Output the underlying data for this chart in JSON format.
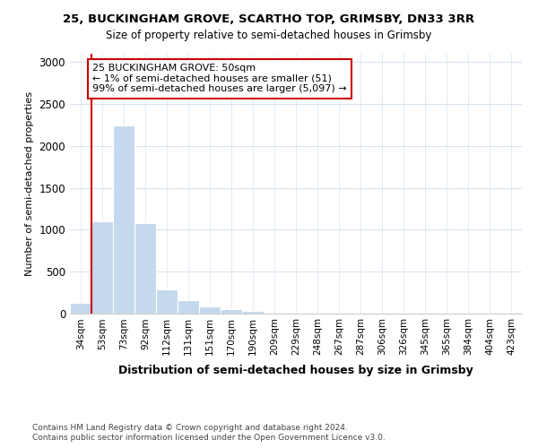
{
  "title1": "25, BUCKINGHAM GROVE, SCARTHO TOP, GRIMSBY, DN33 3RR",
  "title2": "Size of property relative to semi-detached houses in Grimsby",
  "xlabel": "Distribution of semi-detached houses by size in Grimsby",
  "ylabel": "Number of semi-detached properties",
  "categories": [
    "34sqm",
    "53sqm",
    "73sqm",
    "92sqm",
    "112sqm",
    "131sqm",
    "151sqm",
    "170sqm",
    "190sqm",
    "209sqm",
    "229sqm",
    "248sqm",
    "267sqm",
    "287sqm",
    "306sqm",
    "326sqm",
    "345sqm",
    "365sqm",
    "384sqm",
    "404sqm",
    "423sqm"
  ],
  "values": [
    125,
    1100,
    2250,
    1075,
    285,
    160,
    90,
    50,
    30,
    5,
    2,
    0,
    0,
    0,
    0,
    0,
    0,
    0,
    0,
    0,
    0
  ],
  "bar_color": "#c5d9ee",
  "bar_edge_color": "#c5d9ee",
  "annotation_title": "25 BUCKINGHAM GROVE: 50sqm",
  "annotation_line1": "← 1% of semi-detached houses are smaller (51)",
  "annotation_line2": "99% of semi-detached houses are larger (5,097) →",
  "annotation_box_facecolor": "#ffffff",
  "annotation_box_edgecolor": "#cc0000",
  "vline_color": "#cc0000",
  "vline_x": 0.5,
  "ylim": [
    0,
    3100
  ],
  "yticks": [
    0,
    500,
    1000,
    1500,
    2000,
    2500,
    3000
  ],
  "footer1": "Contains HM Land Registry data © Crown copyright and database right 2024.",
  "footer2": "Contains public sector information licensed under the Open Government Licence v3.0.",
  "bg_color": "#ffffff",
  "grid_color": "#d8e4f0"
}
